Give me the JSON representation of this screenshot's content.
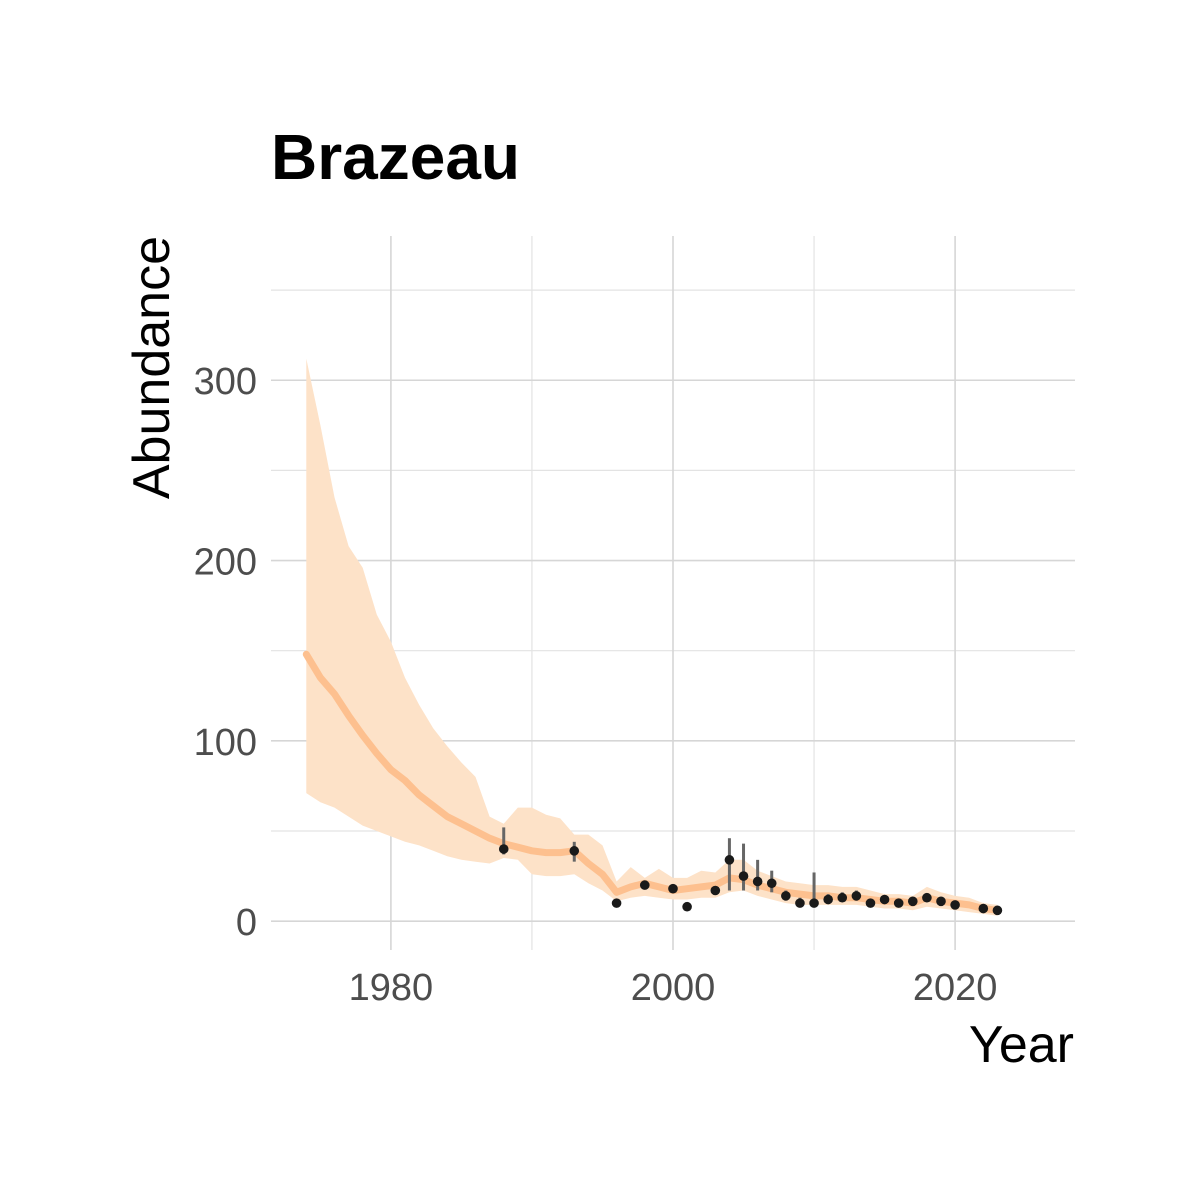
{
  "chart_data": {
    "type": "line",
    "title": "Brazeau",
    "xlabel": "Year",
    "ylabel": "Abundance",
    "xlim": [
      1971.5,
      2028.5
    ],
    "ylim": [
      -16,
      380
    ],
    "x_ticks": [
      1980,
      2000,
      2020
    ],
    "y_ticks": [
      0,
      100,
      200,
      300
    ],
    "grid": true,
    "legend": "none",
    "colors": {
      "line": "#fdc08f",
      "ribbon": "#fde2c8",
      "points": "#1a1a1a",
      "error_bars": "#666666"
    },
    "series": [
      {
        "kind": "estimate_with_interval",
        "x": [
          1974,
          1975,
          1976,
          1977,
          1978,
          1979,
          1980,
          1981,
          1982,
          1983,
          1984,
          1985,
          1986,
          1987,
          1988,
          1989,
          1990,
          1991,
          1992,
          1993,
          1994,
          1995,
          1996,
          1997,
          1998,
          1999,
          2000,
          2001,
          2002,
          2003,
          2004,
          2005,
          2006,
          2007,
          2008,
          2009,
          2010,
          2011,
          2012,
          2013,
          2014,
          2015,
          2016,
          2017,
          2018,
          2019,
          2020,
          2021,
          2022,
          2023
        ],
        "y": [
          148,
          135,
          126,
          114,
          103,
          93,
          84,
          78,
          70,
          64,
          58,
          54,
          50,
          46,
          43,
          41,
          39,
          38,
          38,
          39,
          32,
          26,
          16,
          19,
          21,
          19,
          17,
          18,
          19,
          20,
          24,
          23,
          20,
          18,
          16,
          15,
          14,
          14,
          13,
          13,
          12,
          11,
          11,
          10,
          13,
          11,
          10,
          9,
          7,
          6
        ],
        "lower": [
          71,
          66,
          63,
          58,
          53,
          50,
          47,
          44,
          42,
          39,
          36,
          34,
          33,
          32,
          35,
          34,
          26,
          25,
          25,
          26,
          21,
          17,
          11,
          13,
          14,
          13,
          12,
          12,
          13,
          13,
          16,
          17,
          14,
          12,
          10,
          9,
          9,
          9,
          9,
          9,
          8,
          7,
          7,
          6,
          8,
          7,
          6,
          5,
          4,
          3
        ],
        "upper": [
          312,
          275,
          235,
          208,
          196,
          170,
          155,
          135,
          120,
          107,
          97,
          88,
          80,
          58,
          54,
          63,
          63,
          59,
          57,
          48,
          48,
          42,
          22,
          30,
          24,
          29,
          24,
          24,
          28,
          27,
          34,
          34,
          28,
          25,
          22,
          21,
          20,
          20,
          19,
          19,
          17,
          15,
          15,
          14,
          19,
          16,
          14,
          13,
          10,
          9
        ]
      },
      {
        "kind": "observations",
        "x": [
          1988,
          1993,
          1996,
          1998,
          2000,
          2001,
          2003,
          2004,
          2005,
          2006,
          2007,
          2008,
          2009,
          2010,
          2011,
          2012,
          2013,
          2014,
          2015,
          2016,
          2017,
          2018,
          2019,
          2020,
          2022,
          2023
        ],
        "y": [
          40,
          39,
          10,
          20,
          18,
          8,
          17,
          34,
          25,
          22,
          21,
          14,
          10,
          10,
          12,
          13,
          14,
          10,
          12,
          10,
          11,
          13,
          11,
          9,
          7,
          6
        ],
        "err_low": [
          37,
          33,
          9,
          19,
          17,
          8,
          16,
          17,
          17,
          17,
          16,
          12,
          9,
          9,
          11,
          12,
          13,
          9,
          11,
          9,
          10,
          12,
          10,
          8,
          6,
          5
        ],
        "err_high": [
          52,
          44,
          12,
          22,
          19,
          9,
          18,
          46,
          43,
          34,
          28,
          17,
          13,
          27,
          15,
          16,
          17,
          12,
          14,
          12,
          13,
          15,
          13,
          11,
          9,
          8
        ]
      }
    ]
  }
}
